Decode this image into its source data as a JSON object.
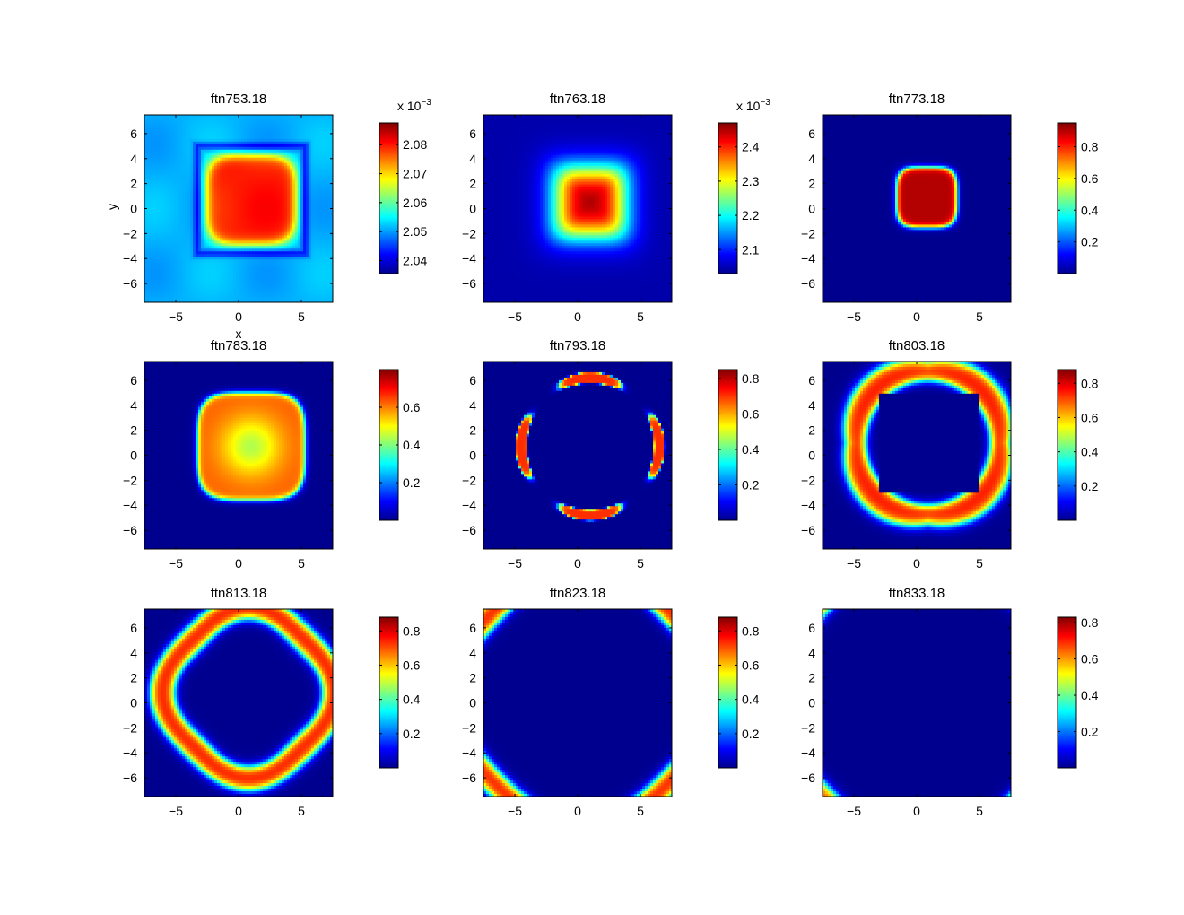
{
  "figure": {
    "colormap": "jet",
    "colormap_colors": [
      "#00008f",
      "#0000ff",
      "#00ffff",
      "#ffff00",
      "#ff0000",
      "#800000"
    ]
  },
  "chart_data": [
    {
      "type": "heatmap",
      "title": "ftn753.18",
      "xlabel": "x",
      "ylabel": "y",
      "xlim": [
        -7.5,
        7.5
      ],
      "ylim": [
        -7.5,
        7.5
      ],
      "xticks": [
        -5,
        0,
        5
      ],
      "yticks": [
        -6,
        -4,
        -2,
        0,
        2,
        4,
        6
      ],
      "colorbar": {
        "clim": [
          2.0355,
          2.0875
        ],
        "ticks": [
          2.04,
          2.05,
          2.06,
          2.07,
          2.08
        ],
        "tick_labels": [
          "2.04",
          "2.05",
          "2.06",
          "2.07",
          "2.08"
        ],
        "exponent_label": "x 10",
        "exponent": "−3"
      },
      "field": {
        "pattern": "square_shell",
        "center": [
          1,
          0.7
        ],
        "inner_half_width": 3.6,
        "inner_value": 0.85,
        "frame_half_width": 4.3,
        "frame_value": 0.1,
        "background_value": 0.3
      }
    },
    {
      "type": "heatmap",
      "title": "ftn763.18",
      "xlabel": "",
      "ylabel": "",
      "xlim": [
        -7.5,
        7.5
      ],
      "ylim": [
        -7.5,
        7.5
      ],
      "xticks": [
        -5,
        0,
        5
      ],
      "yticks": [
        -6,
        -4,
        -2,
        0,
        2,
        4,
        6
      ],
      "colorbar": {
        "clim": [
          2.03,
          2.47
        ],
        "ticks": [
          2.1,
          2.2,
          2.3,
          2.4
        ],
        "tick_labels": [
          "2.1",
          "2.2",
          "2.3",
          "2.4"
        ],
        "exponent_label": "x 10",
        "exponent": "−3"
      },
      "field": {
        "pattern": "square_glow",
        "center": [
          1,
          0.5
        ],
        "half_width": 2.6,
        "peak_value": 0.98,
        "background_value": 0.03
      }
    },
    {
      "type": "heatmap",
      "title": "ftn773.18",
      "xlabel": "",
      "ylabel": "",
      "xlim": [
        -7.5,
        7.5
      ],
      "ylim": [
        -7.5,
        7.5
      ],
      "xticks": [
        -5,
        0,
        5
      ],
      "yticks": [
        -6,
        -4,
        -2,
        0,
        2,
        4,
        6
      ],
      "colorbar": {
        "clim": [
          0,
          0.95
        ],
        "ticks": [
          0.2,
          0.4,
          0.6,
          0.8
        ],
        "tick_labels": [
          "0.2",
          "0.4",
          "0.6",
          "0.8"
        ]
      },
      "field": {
        "pattern": "blob",
        "center": [
          0.8,
          0.9
        ],
        "half_width": 2.4,
        "peak_value": 0.95,
        "background_value": 0
      }
    },
    {
      "type": "heatmap",
      "title": "ftn783.18",
      "xlabel": "",
      "ylabel": "",
      "xlim": [
        -7.5,
        7.5
      ],
      "ylim": [
        -7.5,
        7.5
      ],
      "xticks": [
        -5,
        0,
        5
      ],
      "yticks": [
        -6,
        -4,
        -2,
        0,
        2,
        4,
        6
      ],
      "colorbar": {
        "clim": [
          0,
          0.8
        ],
        "ticks": [
          0.2,
          0.4,
          0.6
        ],
        "tick_labels": [
          "0.2",
          "0.4",
          "0.6"
        ]
      },
      "field": {
        "pattern": "blob_dip",
        "center": [
          1,
          0.7
        ],
        "half_width": 4.3,
        "rim_value": 0.78,
        "center_value": 0.55,
        "background_value": 0
      }
    },
    {
      "type": "heatmap",
      "title": "ftn793.18",
      "xlabel": "",
      "ylabel": "",
      "xlim": [
        -7.5,
        7.5
      ],
      "ylim": [
        -7.5,
        7.5
      ],
      "xticks": [
        -5,
        0,
        5
      ],
      "yticks": [
        -6,
        -4,
        -2,
        0,
        2,
        4,
        6
      ],
      "colorbar": {
        "clim": [
          0,
          0.85
        ],
        "ticks": [
          0.2,
          0.4,
          0.6,
          0.8
        ],
        "tick_labels": [
          "0.2",
          "0.4",
          "0.6",
          "0.8"
        ]
      },
      "field": {
        "pattern": "four_arcs",
        "center": [
          1,
          0.7
        ],
        "radius": 5.5,
        "arc_half_length": 2.5,
        "thickness": 0.85,
        "peak_value": 0.83,
        "background_value": 0
      }
    },
    {
      "type": "heatmap",
      "title": "ftn803.18",
      "xlabel": "",
      "ylabel": "",
      "xlim": [
        -7.5,
        7.5
      ],
      "ylim": [
        -7.5,
        7.5
      ],
      "xticks": [
        -5,
        0,
        5
      ],
      "yticks": [
        -6,
        -4,
        -2,
        0,
        2,
        4,
        6
      ],
      "colorbar": {
        "clim": [
          0,
          0.88
        ],
        "ticks": [
          0.2,
          0.4,
          0.6,
          0.8
        ],
        "tick_labels": [
          "0.2",
          "0.4",
          "0.6",
          "0.8"
        ]
      },
      "field": {
        "pattern": "ring_cut",
        "center": [
          0.9,
          1
        ],
        "inner_radius": 5.0,
        "outer_radius": 6.5,
        "square_half_width": 4.0,
        "peak_value": 0.86,
        "background_value": 0
      }
    },
    {
      "type": "heatmap",
      "title": "ftn813.18",
      "xlabel": "",
      "ylabel": "",
      "xlim": [
        -7.5,
        7.5
      ],
      "ylim": [
        -7.5,
        7.5
      ],
      "xticks": [
        -5,
        0,
        5
      ],
      "yticks": [
        -6,
        -4,
        -2,
        0,
        2,
        4,
        6
      ],
      "colorbar": {
        "clim": [
          0,
          0.88
        ],
        "ticks": [
          0.2,
          0.4,
          0.6,
          0.8
        ],
        "tick_labels": [
          "0.2",
          "0.4",
          "0.6",
          "0.8"
        ]
      },
      "field": {
        "pattern": "ring",
        "center": [
          0.8,
          0.8
        ],
        "inner_radius": 5.6,
        "outer_radius": 7.4,
        "peak_value": 0.86,
        "background_value": 0
      }
    },
    {
      "type": "heatmap",
      "title": "ftn823.18",
      "xlabel": "",
      "ylabel": "",
      "xlim": [
        -7.5,
        7.5
      ],
      "ylim": [
        -7.5,
        7.5
      ],
      "xticks": [
        -5,
        0,
        5
      ],
      "yticks": [
        -6,
        -4,
        -2,
        0,
        2,
        4,
        6
      ],
      "colorbar": {
        "clim": [
          0,
          0.88
        ],
        "ticks": [
          0.2,
          0.4,
          0.6,
          0.8
        ],
        "tick_labels": [
          "0.2",
          "0.4",
          "0.6",
          "0.8"
        ]
      },
      "field": {
        "pattern": "ring",
        "center": [
          0.3,
          0.5
        ],
        "inner_radius": 9.3,
        "outer_radius": 11.0,
        "peak_value": 0.86,
        "background_value": 0
      }
    },
    {
      "type": "heatmap",
      "title": "ftn833.18",
      "xlabel": "",
      "ylabel": "",
      "xlim": [
        -7.5,
        7.5
      ],
      "ylim": [
        -7.5,
        7.5
      ],
      "xticks": [
        -5,
        0,
        5
      ],
      "yticks": [
        -6,
        -4,
        -2,
        0,
        2,
        4,
        6
      ],
      "colorbar": {
        "clim": [
          0,
          0.83
        ],
        "ticks": [
          0.2,
          0.4,
          0.6,
          0.8
        ],
        "tick_labels": [
          "0.2",
          "0.4",
          "0.6",
          "0.8"
        ]
      },
      "field": {
        "pattern": "ring",
        "center": [
          0.5,
          0.3
        ],
        "inner_radius": 10.7,
        "outer_radius": 12.2,
        "peak_value": 0.81,
        "background_value": 0
      }
    }
  ]
}
